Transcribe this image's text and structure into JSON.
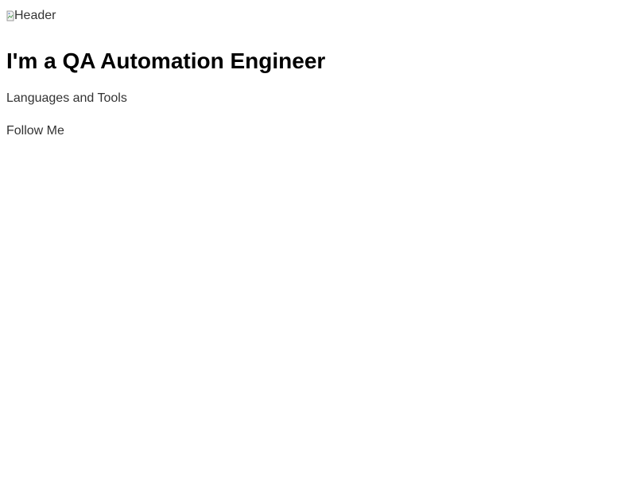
{
  "header": {
    "image_alt": "Header"
  },
  "main": {
    "heading": "I'm a QA Automation Engineer",
    "languages_label": "Languages and Tools",
    "follow_label": "Follow Me"
  },
  "colors": {
    "heading": "#000000",
    "text": "#333333",
    "background": "#ffffff"
  },
  "icons": {
    "broken_image": "broken-image-icon"
  }
}
